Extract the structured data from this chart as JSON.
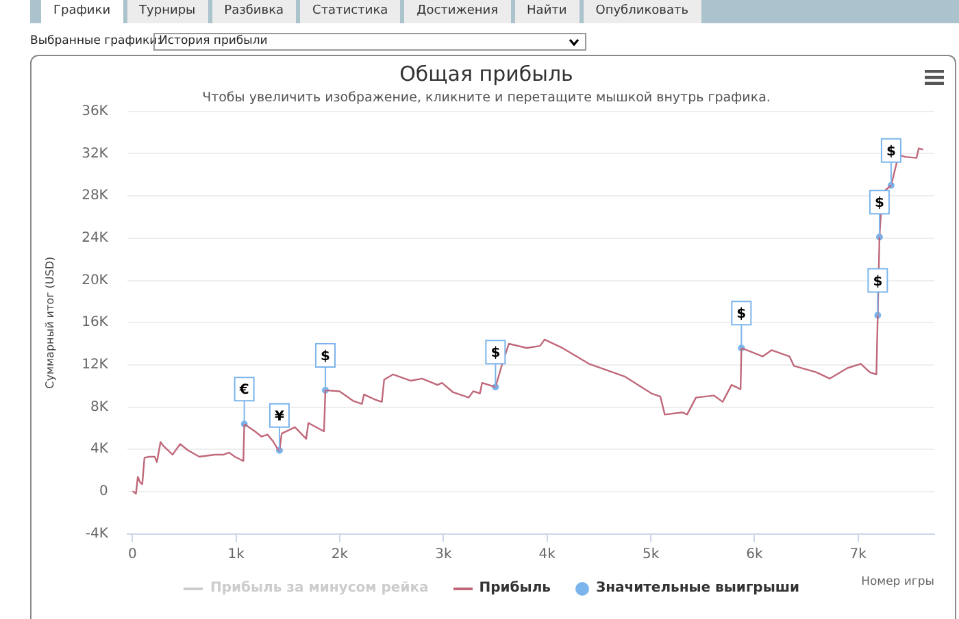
{
  "chart_data": {
    "type": "line",
    "title": "Общая прибыль",
    "subtitle": "Чтобы увеличить изображение, кликните и перетащите мышкой внутрь графика.",
    "xlabel": "Номер игры",
    "ylabel": "Суммарный итог (USD)",
    "annotations": [
      "Графики",
      "Турниры",
      "Разбивка",
      "Статистика",
      "Достижения",
      "Найти",
      "Опубликовать",
      "Выбранные графики:",
      "История прибыли"
    ],
    "xlim": [
      -50,
      7735
    ],
    "xticks": [
      0,
      {
        "value": 1000,
        "label": "1k"
      },
      {
        "value": 2000,
        "label": "2k"
      },
      {
        "value": 3000,
        "label": "3k"
      },
      {
        "value": 4000,
        "label": "4k"
      },
      {
        "value": 5000,
        "label": "5k"
      },
      {
        "value": 6000,
        "label": "6k"
      },
      {
        "value": 7000,
        "label": "7k"
      }
    ],
    "ylim": [
      -4000,
      36000
    ],
    "yticks": [
      {
        "value": -4000,
        "label": "-4K"
      },
      0,
      {
        "value": 4000,
        "label": "4K"
      },
      {
        "value": 8000,
        "label": "8K"
      },
      {
        "value": 12000,
        "label": "12K"
      },
      {
        "value": 16000,
        "label": "16K"
      },
      {
        "value": 20000,
        "label": "20K"
      },
      {
        "value": 24000,
        "label": "24K"
      },
      {
        "value": 28000,
        "label": "28K"
      },
      {
        "value": 32000,
        "label": "32K"
      },
      {
        "value": 36000,
        "label": "36K"
      }
    ],
    "grid": "y",
    "legend": "bottom",
    "series": [
      {
        "name": "Прибыль за минусом рейка",
        "type": "line",
        "color": "#cccccc"
      },
      {
        "name": "Прибыль",
        "type": "line",
        "color": "#c0687a",
        "x": [
          0,
          9,
          34,
          52,
          73,
          95,
          116,
          159,
          215,
          236,
          271,
          301,
          387,
          460,
          537,
          645,
          795,
          881,
          932,
          988,
          1070,
          1079,
          1182,
          1246,
          1302,
          1354,
          1397,
          1418,
          1440,
          1568,
          1676,
          1697,
          1848,
          1861,
          1998,
          2127,
          2213,
          2234,
          2342,
          2406,
          2428,
          2514,
          2686,
          2793,
          2943,
          2986,
          3094,
          3244,
          3287,
          3352,
          3373,
          3502,
          3567,
          3631,
          3803,
          3932,
          3975,
          4147,
          4404,
          4748,
          5006,
          5092,
          5135,
          5307,
          5350,
          5436,
          5608,
          5693,
          5779,
          5866,
          5874,
          6080,
          6166,
          6338,
          6381,
          6596,
          6725,
          6897,
          7026,
          7112,
          7176,
          7189,
          7206,
          7232,
          7318,
          7391,
          7455,
          7563,
          7584,
          7627
        ],
        "values": [
          0,
          0,
          -200,
          1400,
          900,
          700,
          3200,
          3300,
          3300,
          2800,
          4700,
          4300,
          3500,
          4500,
          3900,
          3300,
          3500,
          3500,
          3700,
          3300,
          2900,
          6400,
          5700,
          5200,
          5400,
          4800,
          4100,
          3900,
          5500,
          6100,
          5000,
          6500,
          5700,
          9600,
          9500,
          8600,
          8300,
          9200,
          8700,
          8500,
          10600,
          11100,
          10500,
          10700,
          10100,
          10300,
          9400,
          8900,
          9500,
          9300,
          10300,
          9900,
          12100,
          14000,
          13600,
          13800,
          14400,
          13600,
          12100,
          10900,
          9300,
          9000,
          7300,
          7500,
          7300,
          8900,
          9100,
          8500,
          10100,
          9700,
          13600,
          12800,
          13400,
          12800,
          11900,
          11300,
          10700,
          11700,
          12100,
          11300,
          11100,
          16700,
          24100,
          28300,
          29000,
          31900,
          31700,
          31600,
          32500,
          32400
        ]
      },
      {
        "name": "Значительные выигрыши",
        "type": "scatter",
        "color": "#7cb5ec",
        "marker": "circle",
        "x": [
          1079,
          1418,
          1861,
          3502,
          5874,
          7189,
          7206,
          7318
        ],
        "values": [
          6400,
          3900,
          9600,
          9900,
          13600,
          16700,
          24100,
          29000
        ],
        "value_labels": [
          "€",
          "¥",
          "$",
          "$",
          "$",
          "$",
          "$",
          "$"
        ]
      }
    ]
  }
}
